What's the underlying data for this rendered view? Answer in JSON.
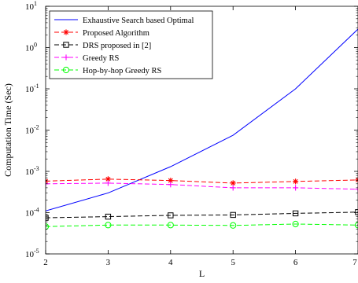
{
  "chart_data": {
    "type": "line",
    "xlabel": "L",
    "ylabel": "Computation Time (Sec)",
    "x": [
      2,
      3,
      4,
      5,
      6,
      7
    ],
    "xlim": [
      2,
      7
    ],
    "x_ticks": [
      "2",
      "3",
      "4",
      "5",
      "6",
      "7"
    ],
    "yscale": "log",
    "ylim": [
      1e-05,
      10
    ],
    "y_ticks": [
      {
        "value": 1e-05,
        "base": "10",
        "exp": "-5"
      },
      {
        "value": 0.0001,
        "base": "10",
        "exp": "-4"
      },
      {
        "value": 0.001,
        "base": "10",
        "exp": "-3"
      },
      {
        "value": 0.01,
        "base": "10",
        "exp": "-2"
      },
      {
        "value": 0.1,
        "base": "10",
        "exp": "-1"
      },
      {
        "value": 1,
        "base": "10",
        "exp": "0"
      },
      {
        "value": 10,
        "base": "10",
        "exp": "1"
      }
    ],
    "grid": false,
    "legend_position": "top-left",
    "series": [
      {
        "name": "Exhaustive Search based Optimal",
        "color": "#0000ff",
        "dash": "solid",
        "marker": "none",
        "values": [
          0.00011,
          0.0003,
          0.0013,
          0.0075,
          0.1,
          2.8
        ]
      },
      {
        "name": "Proposed Algorithm",
        "color": "#ff0000",
        "dash": "dashed",
        "marker": "asterisk",
        "values": [
          0.00058,
          0.00065,
          0.0006,
          0.00052,
          0.00057,
          0.00062
        ]
      },
      {
        "name": "DRS proposed in [2]",
        "color": "#000000",
        "dash": "dashed",
        "marker": "square",
        "values": [
          7.5e-05,
          8e-05,
          8.6e-05,
          8.8e-05,
          9.6e-05,
          0.000103
        ]
      },
      {
        "name": "Greedy RS",
        "color": "#ff00ff",
        "dash": "dashed",
        "marker": "plus",
        "values": [
          0.0005,
          0.00052,
          0.00048,
          0.0004,
          0.0004,
          0.00037
        ]
      },
      {
        "name": "Hop-by-hop Greedy RS",
        "color": "#00ff00",
        "dash": "dashed",
        "marker": "circle",
        "values": [
          4.6e-05,
          5e-05,
          5e-05,
          4.9e-05,
          5.3e-05,
          5e-05
        ]
      }
    ]
  }
}
